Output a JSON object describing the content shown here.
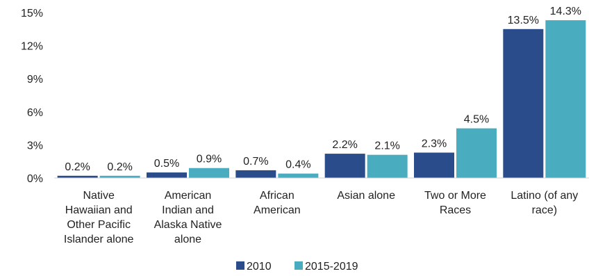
{
  "chart_data": {
    "type": "bar",
    "categories": [
      [
        "Native",
        "Hawaiian and",
        "Other Pacific",
        "Islander alone"
      ],
      [
        "American",
        "Indian and",
        "Alaska Native",
        "alone"
      ],
      [
        "African",
        "American"
      ],
      [
        "Asian alone"
      ],
      [
        "Two or More",
        "Races"
      ],
      [
        "Latino (of any",
        "race)"
      ]
    ],
    "series": [
      {
        "name": "2010",
        "color": "#2b4c8a",
        "values": [
          0.2,
          0.5,
          0.7,
          2.2,
          2.3,
          13.5
        ],
        "labels": [
          "0.2%",
          "0.5%",
          "0.7%",
          "2.2%",
          "2.3%",
          "13.5%"
        ]
      },
      {
        "name": "2015-2019",
        "color": "#4aacbf",
        "values": [
          0.2,
          0.9,
          0.4,
          2.1,
          4.5,
          14.3
        ],
        "labels": [
          "0.2%",
          "0.9%",
          "0.4%",
          "2.1%",
          "4.5%",
          "14.3%"
        ]
      }
    ],
    "ylim": [
      0,
      15
    ],
    "yticks": [
      0,
      3,
      6,
      9,
      12,
      15
    ],
    "ytick_labels": [
      "0%",
      "3%",
      "6%",
      "9%",
      "12%",
      "15%"
    ],
    "grid": false,
    "legend_position": "bottom-center"
  }
}
